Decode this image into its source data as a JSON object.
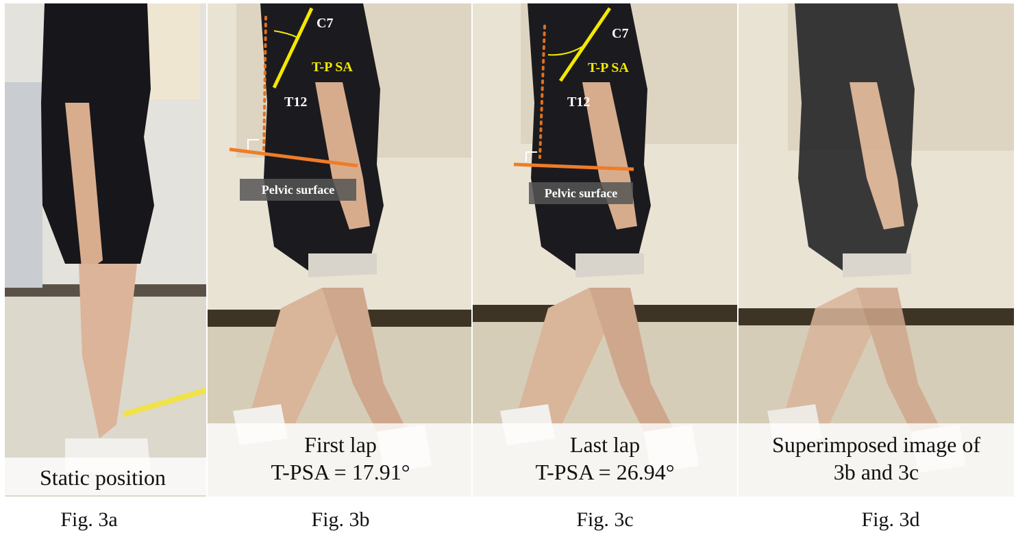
{
  "panels": [
    {
      "caption": [
        "Static position"
      ],
      "figure_label": "Fig. 3a"
    },
    {
      "caption": [
        "First lap",
        "T-PSA = 17.91°"
      ],
      "figure_label": "Fig. 3b",
      "annotations": {
        "upper_marker": "C7",
        "angle": "T-P SA",
        "lower_marker": "T12",
        "plane": "Pelvic surface"
      }
    },
    {
      "caption": [
        "Last lap",
        "T-PSA = 26.94°"
      ],
      "figure_label": "Fig. 3c",
      "annotations": {
        "upper_marker": "C7",
        "angle": "T-P SA",
        "lower_marker": "T12",
        "plane": "Pelvic surface"
      }
    },
    {
      "caption": [
        "Superimposed image of",
        "3b and 3c"
      ],
      "figure_label": "Fig. 3d"
    }
  ]
}
